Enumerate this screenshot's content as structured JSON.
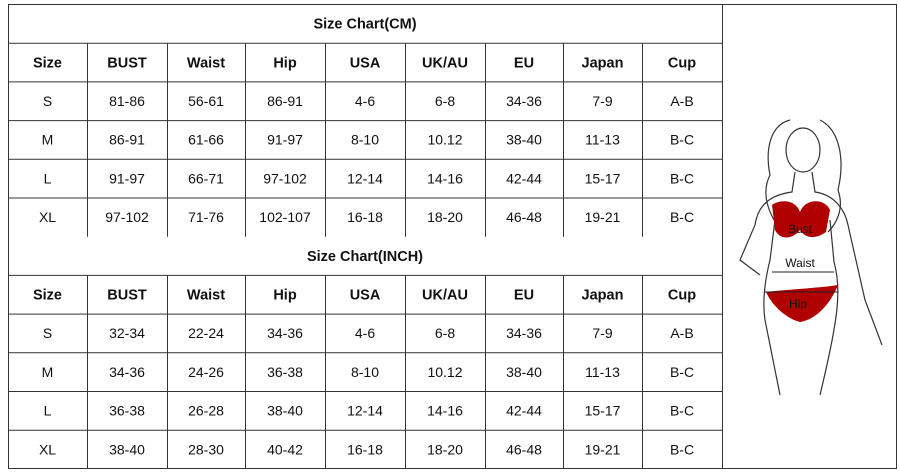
{
  "tables": [
    {
      "title": "Size Chart(CM)",
      "header": [
        "Size",
        "BUST",
        "Waist",
        "Hip",
        "USA",
        "UK/AU",
        "EU",
        "Japan",
        "Cup"
      ],
      "rows": [
        [
          "S",
          "81-86",
          "56-61",
          "86-91",
          "4-6",
          "6-8",
          "34-36",
          "7-9",
          "A-B"
        ],
        [
          "M",
          "86-91",
          "61-66",
          "91-97",
          "8-10",
          "10.12",
          "38-40",
          "11-13",
          "B-C"
        ],
        [
          "L",
          "91-97",
          "66-71",
          "97-102",
          "12-14",
          "14-16",
          "42-44",
          "15-17",
          "B-C"
        ],
        [
          "XL",
          "97-102",
          "71-76",
          "102-107",
          "16-18",
          "18-20",
          "46-48",
          "19-21",
          "B-C"
        ]
      ]
    },
    {
      "title": "Size Chart(INCH)",
      "header": [
        "Size",
        "BUST",
        "Waist",
        "Hip",
        "USA",
        "UK/AU",
        "EU",
        "Japan",
        "Cup"
      ],
      "rows": [
        [
          "S",
          "32-34",
          "22-24",
          "34-36",
          "4-6",
          "6-8",
          "34-36",
          "7-9",
          "A-B"
        ],
        [
          "M",
          "34-36",
          "24-26",
          "36-38",
          "8-10",
          "10.12",
          "38-40",
          "11-13",
          "B-C"
        ],
        [
          "L",
          "36-38",
          "26-28",
          "38-40",
          "12-14",
          "14-16",
          "42-44",
          "15-17",
          "B-C"
        ],
        [
          "XL",
          "38-40",
          "28-30",
          "40-42",
          "16-18",
          "18-20",
          "46-48",
          "19-21",
          "B-C"
        ]
      ]
    }
  ],
  "figure": {
    "labels": [
      "Bust",
      "Waist",
      "Hip"
    ]
  }
}
